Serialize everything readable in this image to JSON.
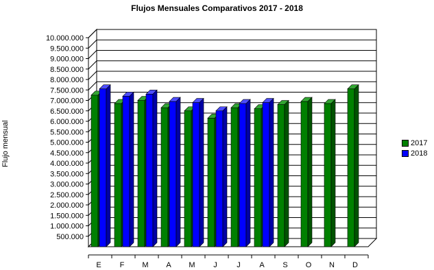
{
  "chart_data": {
    "type": "bar",
    "title": "Flujos Mensuales Comparativos 2017 - 2018",
    "xlabel": "",
    "ylabel": "Flujo mensual",
    "ylim": [
      0,
      10000000
    ],
    "yticks": [
      "500.000",
      "1.000.000",
      "1.500.000",
      "2.000.000",
      "2.500.000",
      "3.000.000",
      "3.500.000",
      "4.000.000",
      "4.500.000",
      "5.000.000",
      "5.500.000",
      "6.000.000",
      "6.500.000",
      "7.000.000",
      "7.500.000",
      "8.000.000",
      "8.500.000",
      "9.000.000",
      "9.500.000",
      "10.000.000"
    ],
    "categories": [
      "E",
      "F",
      "M",
      "A",
      "M",
      "J",
      "J",
      "A",
      "S",
      "O",
      "N",
      "D"
    ],
    "series": [
      {
        "name": "2017",
        "color": "#008000",
        "values": [
          7250000,
          6850000,
          7000000,
          6650000,
          6500000,
          6150000,
          6650000,
          6600000,
          6800000,
          6950000,
          6850000,
          7550000
        ]
      },
      {
        "name": "2018",
        "color": "#0000ff",
        "values": [
          7550000,
          7200000,
          7300000,
          6950000,
          6900000,
          6500000,
          6850000,
          6900000,
          null,
          null,
          null,
          null
        ]
      }
    ],
    "grid": true,
    "legend": "right",
    "style": "3d"
  }
}
